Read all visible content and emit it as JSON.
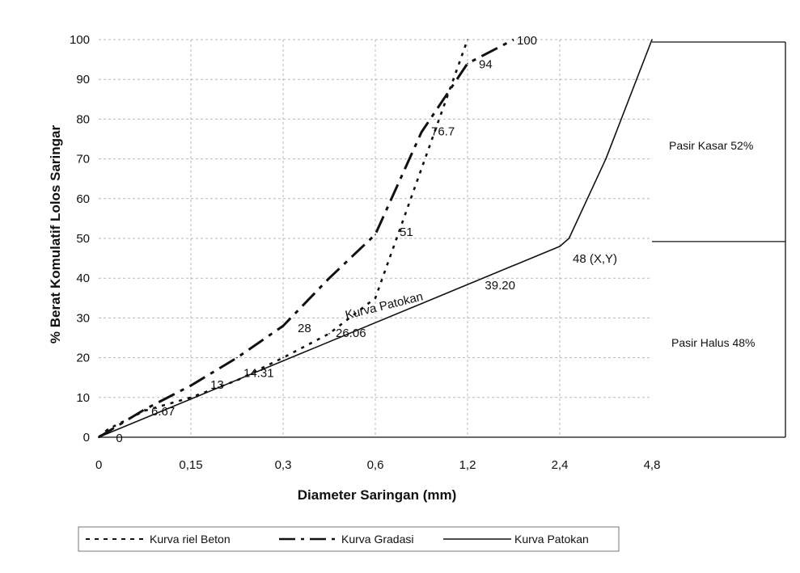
{
  "chart_data": {
    "type": "line",
    "xlabel": "Diameter Saringan (mm)",
    "ylabel": "% Berat Komulatif Lolos Saringar",
    "categories": [
      "0",
      "0,15",
      "0,3",
      "0,6",
      "1,2",
      "2,4",
      "4,8"
    ],
    "ylim": [
      0,
      100
    ],
    "yticks": [
      0,
      10,
      20,
      30,
      40,
      50,
      60,
      70,
      80,
      90,
      100
    ],
    "grid": true,
    "legend_position": "bottom",
    "series": [
      {
        "name": "Kurva riel Beton",
        "style": "dotted",
        "x": [
          0,
          0.1,
          0.5,
          1,
          1.5,
          2,
          2.5,
          3,
          4
        ],
        "y": [
          0,
          2,
          6.67,
          10,
          14.31,
          20,
          26.06,
          35,
          100
        ],
        "labels": [
          {
            "text": "0",
            "x": 0.1,
            "y": 0
          },
          {
            "text": "6.67",
            "x": 0.5,
            "y": 6.67
          },
          {
            "text": "14.31",
            "x": 1.5,
            "y": 14.31
          },
          {
            "text": "26.06",
            "x": 2.5,
            "y": 26.06
          }
        ]
      },
      {
        "name": "Kurva Gradasi",
        "style": "dash-dot",
        "x": [
          0,
          0.5,
          1,
          1.5,
          2,
          2.5,
          3,
          3.5,
          4
        ],
        "y": [
          0,
          7,
          13,
          20,
          28,
          40,
          51,
          76.7,
          94
        ],
        "x_end": 4.5,
        "y_end": 100,
        "labels": [
          {
            "text": "13",
            "x": 1,
            "y": 13
          },
          {
            "text": "28",
            "x": 2,
            "y": 28
          },
          {
            "text": "51",
            "x": 3,
            "y": 51
          },
          {
            "text": "76.7",
            "x": 3.5,
            "y": 76.7
          },
          {
            "text": "94",
            "x": 4,
            "y": 94
          },
          {
            "text": "100",
            "x": 4.5,
            "y": 100
          }
        ]
      },
      {
        "name": "Kurva Patokan",
        "style": "solid",
        "x": [
          0,
          5,
          5.1,
          5.5,
          6
        ],
        "y": [
          0,
          48,
          50,
          70,
          100
        ],
        "labels": [
          {
            "text": "39.20",
            "x": 4.1,
            "y": 39.2
          },
          {
            "text": "48 (X,Y)",
            "x": 5,
            "y": 48
          }
        ]
      }
    ],
    "annotations": {
      "curve_label": "Kurva Patokan",
      "zone_upper": "Pasir Kasar 52%",
      "zone_lower": "Pasir Halus 48%"
    }
  }
}
